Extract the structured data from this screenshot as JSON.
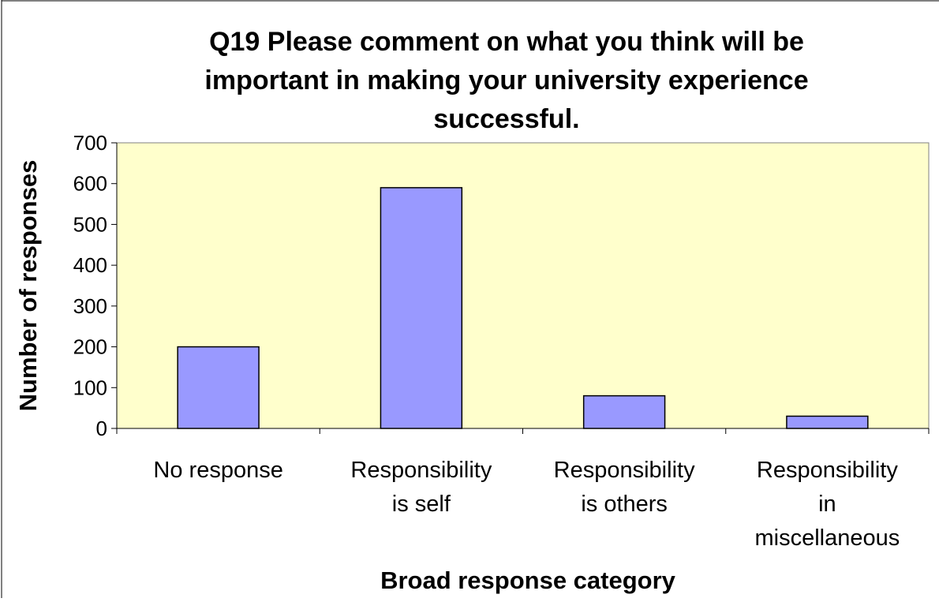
{
  "chart_data": {
    "type": "bar",
    "title_lines": [
      "Q19 Please comment on what you think will be",
      "important in making your university experience",
      "successful."
    ],
    "xlabel": "Broad response category",
    "ylabel": "Number of responses",
    "ylim": [
      0,
      700
    ],
    "yticks": [
      0,
      100,
      200,
      300,
      400,
      500,
      600,
      700
    ],
    "categories": [
      [
        "No response"
      ],
      [
        "Responsibility",
        "is self"
      ],
      [
        "Responsibility",
        "is others"
      ],
      [
        "Responsibility",
        "in",
        "miscellaneous"
      ]
    ],
    "values": [
      200,
      590,
      80,
      30
    ],
    "grid": false,
    "legend": "none",
    "colors": {
      "plot_background": "#ffffcc",
      "bar_fill": "#9999ff",
      "bar_stroke": "#000000"
    }
  }
}
